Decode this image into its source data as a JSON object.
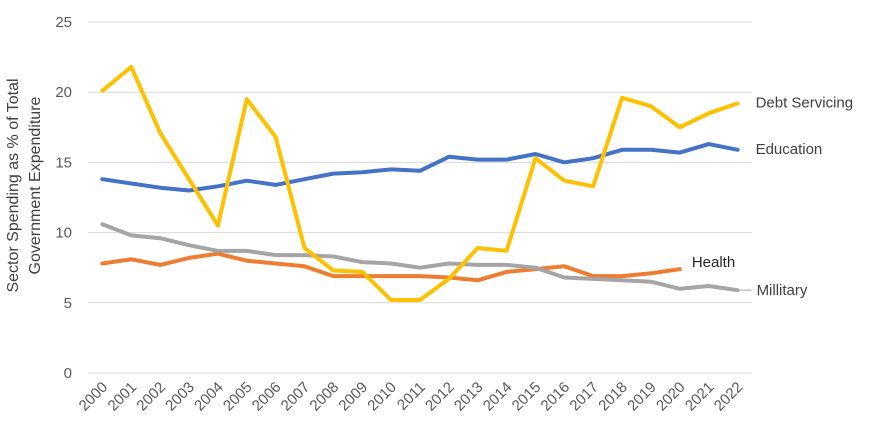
{
  "chart_data": {
    "type": "line",
    "title": "",
    "xlabel": "",
    "ylabel": "Sector Spending as % of Total Government Expenditure",
    "ylabel_lines": [
      "Sector Spending as % of Total",
      "Government  Expenditure"
    ],
    "ylim": [
      0,
      25
    ],
    "yticks": [
      0,
      5,
      10,
      15,
      20,
      25
    ],
    "grid": true,
    "categories": [
      "2000",
      "2001",
      "2002",
      "2003",
      "2004",
      "2005",
      "2006",
      "2007",
      "2008",
      "2009",
      "2010",
      "2011",
      "2012",
      "2013",
      "2014",
      "2015",
      "2016",
      "2017",
      "2018",
      "2019",
      "2020",
      "2021",
      "2022"
    ],
    "series": [
      {
        "name": "Debt Servicing",
        "color": "#FFC000",
        "values": [
          20.1,
          21.8,
          17.1,
          13.8,
          10.5,
          19.5,
          16.8,
          8.9,
          7.3,
          7.2,
          5.2,
          5.2,
          6.7,
          8.9,
          8.7,
          15.3,
          13.7,
          13.3,
          19.6,
          19.0,
          17.5,
          18.5,
          19.2
        ]
      },
      {
        "name": "Education",
        "color": "#4472C4",
        "values": [
          13.8,
          13.5,
          13.2,
          13.0,
          13.3,
          13.7,
          13.4,
          13.8,
          14.2,
          14.3,
          14.5,
          14.4,
          15.4,
          15.2,
          15.2,
          15.6,
          15.0,
          15.3,
          15.9,
          15.9,
          15.7,
          16.3,
          15.9
        ]
      },
      {
        "name": "Health",
        "color": "#ED7D31",
        "values": [
          7.8,
          8.1,
          7.7,
          8.2,
          8.5,
          8.0,
          7.8,
          7.6,
          6.9,
          6.9,
          6.9,
          6.9,
          6.8,
          6.6,
          7.2,
          7.4,
          7.6,
          6.9,
          6.9,
          7.1,
          7.4,
          null,
          null
        ]
      },
      {
        "name": "Millitary",
        "color": "#A5A5A5",
        "values": [
          10.6,
          9.8,
          9.6,
          9.1,
          8.7,
          8.7,
          8.4,
          8.4,
          8.3,
          7.9,
          7.8,
          7.5,
          7.8,
          7.7,
          7.7,
          7.5,
          6.8,
          6.7,
          6.6,
          6.5,
          6.0,
          6.2,
          5.9
        ]
      }
    ]
  }
}
